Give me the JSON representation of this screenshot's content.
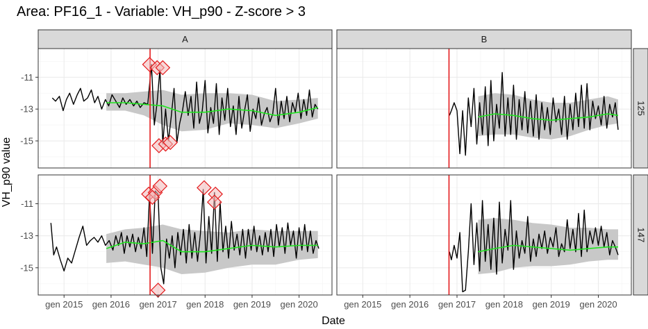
{
  "title": "Area: PF16_1 - Variable: VH_p90 - Z-score > 3",
  "colors": {
    "series": "#000000",
    "trend": "#1ee61e",
    "band": "#c8c8c8",
    "event_line": "#e41a1c",
    "anomaly": "#e41a1c",
    "anomaly_fill": "#f2b8b8",
    "strip_bg": "#d9d9d9",
    "grid": "#ebebeb",
    "panel_border": "#333333"
  },
  "chart_data": {
    "type": "line",
    "facet_columns": [
      "A",
      "B"
    ],
    "facet_rows": [
      "125",
      "147"
    ],
    "xlabel": "Date",
    "ylabel": "VH_p90 value",
    "x_ticks": [
      "gen 2015",
      "gen 2016",
      "gen 2017",
      "gen 2018",
      "gen 2019",
      "gen 2020"
    ],
    "x_tick_values": [
      2015.0,
      2016.0,
      2017.0,
      2018.0,
      2019.0,
      2020.0
    ],
    "xlim": [
      2014.45,
      2020.7
    ],
    "event_date": 2016.83,
    "y_ticks": [
      -11,
      -13,
      -15
    ],
    "ylim": [
      -16.7,
      -9.2
    ],
    "panels": [
      {
        "col": "A",
        "row": "125",
        "x": [
          2014.75,
          2014.82,
          2014.9,
          2014.98,
          2015.05,
          2015.12,
          2015.2,
          2015.28,
          2015.35,
          2015.42,
          2015.5,
          2015.58,
          2015.65,
          2015.72,
          2015.8,
          2015.88,
          2015.95,
          2016.02,
          2016.1,
          2016.18,
          2016.25,
          2016.32,
          2016.4,
          2016.48,
          2016.55,
          2016.62,
          2016.7,
          2016.78,
          2016.86,
          2016.92,
          2016.98,
          2017.04,
          2017.1,
          2017.16,
          2017.22,
          2017.28,
          2017.34,
          2017.4,
          2017.46,
          2017.52,
          2017.58,
          2017.64,
          2017.7,
          2017.76,
          2017.82,
          2017.88,
          2017.94,
          2018.0,
          2018.06,
          2018.12,
          2018.18,
          2018.24,
          2018.3,
          2018.36,
          2018.42,
          2018.48,
          2018.54,
          2018.6,
          2018.66,
          2018.72,
          2018.78,
          2018.84,
          2018.9,
          2018.96,
          2019.02,
          2019.08,
          2019.14,
          2019.2,
          2019.26,
          2019.32,
          2019.38,
          2019.44,
          2019.5,
          2019.56,
          2019.62,
          2019.68,
          2019.74,
          2019.8,
          2019.86,
          2019.92,
          2019.98,
          2020.04,
          2020.1,
          2020.16,
          2020.22,
          2020.28,
          2020.34,
          2020.4
        ],
        "y": [
          -12.3,
          -12.5,
          -12.2,
          -13.1,
          -12.4,
          -12.0,
          -12.7,
          -12.1,
          -11.7,
          -12.5,
          -12.3,
          -11.8,
          -12.6,
          -12.2,
          -13.0,
          -12.4,
          -12.8,
          -12.1,
          -12.5,
          -12.9,
          -12.3,
          -12.7,
          -12.4,
          -12.8,
          -12.5,
          -12.9,
          -12.6,
          -12.7,
          -10.2,
          -14.0,
          -12.6,
          -10.5,
          -15.2,
          -13.0,
          -15.0,
          -13.5,
          -11.7,
          -15.1,
          -13.9,
          -13.1,
          -11.9,
          -13.4,
          -12.2,
          -14.2,
          -11.3,
          -13.9,
          -13.1,
          -11.2,
          -14.5,
          -12.9,
          -13.9,
          -11.4,
          -14.6,
          -12.3,
          -13.7,
          -11.7,
          -14.1,
          -12.8,
          -14.6,
          -12.2,
          -14.2,
          -13.1,
          -12.1,
          -14.4,
          -13.0,
          -13.6,
          -12.3,
          -14.0,
          -13.3,
          -12.9,
          -13.8,
          -13.3,
          -11.7,
          -14.0,
          -12.5,
          -13.6,
          -12.2,
          -13.8,
          -12.6,
          -13.2,
          -12.0,
          -13.6,
          -12.4,
          -13.4,
          -11.8,
          -13.5,
          -12.7,
          -13.0
        ],
        "trend_x": [
          2015.9,
          2016.3,
          2016.7,
          2017.1,
          2017.5,
          2018.0,
          2018.5,
          2019.0,
          2019.5,
          2020.0,
          2020.4
        ],
        "trend_y": [
          -12.6,
          -12.6,
          -12.7,
          -12.8,
          -13.2,
          -13.2,
          -13.0,
          -13.1,
          -13.4,
          -13.2,
          -12.9
        ],
        "band_x": [
          2015.9,
          2016.3,
          2016.7,
          2017.1,
          2017.5,
          2018.0,
          2018.5,
          2019.0,
          2019.5,
          2020.0,
          2020.4
        ],
        "band_low": [
          -13.1,
          -13.1,
          -13.4,
          -14.0,
          -14.4,
          -14.3,
          -13.9,
          -14.0,
          -14.2,
          -13.9,
          -13.6
        ],
        "band_high": [
          -12.0,
          -12.0,
          -11.9,
          -11.8,
          -12.1,
          -12.0,
          -12.0,
          -12.1,
          -12.5,
          -12.4,
          -12.3
        ],
        "anomalies": [
          {
            "x": 2016.82,
            "y": -10.2
          },
          {
            "x": 2016.98,
            "y": -10.4
          },
          {
            "x": 2017.1,
            "y": -10.4
          },
          {
            "x": 2017.02,
            "y": -15.3
          },
          {
            "x": 2017.16,
            "y": -15.2
          },
          {
            "x": 2017.26,
            "y": -15.1
          }
        ]
      },
      {
        "col": "B",
        "row": "125",
        "x": [
          2016.84,
          2016.88,
          2016.94,
          2017.0,
          2017.06,
          2017.12,
          2017.18,
          2017.24,
          2017.3,
          2017.36,
          2017.42,
          2017.48,
          2017.54,
          2017.6,
          2017.66,
          2017.72,
          2017.78,
          2017.84,
          2017.9,
          2017.96,
          2018.02,
          2018.08,
          2018.14,
          2018.2,
          2018.26,
          2018.32,
          2018.38,
          2018.44,
          2018.5,
          2018.56,
          2018.62,
          2018.68,
          2018.74,
          2018.8,
          2018.86,
          2018.92,
          2018.98,
          2019.04,
          2019.1,
          2019.16,
          2019.22,
          2019.28,
          2019.34,
          2019.4,
          2019.46,
          2019.52,
          2019.58,
          2019.64,
          2019.7,
          2019.76,
          2019.82,
          2019.88,
          2019.94,
          2020.0,
          2020.06,
          2020.12,
          2020.18,
          2020.24,
          2020.3,
          2020.36,
          2020.42
        ],
        "y": [
          -13.4,
          -13.1,
          -12.6,
          -13.1,
          -15.8,
          -13.1,
          -15.9,
          -12.3,
          -14.1,
          -11.7,
          -15.2,
          -12.6,
          -14.6,
          -11.6,
          -15.3,
          -11.2,
          -15.0,
          -12.7,
          -14.2,
          -10.7,
          -14.7,
          -12.3,
          -14.6,
          -11.5,
          -14.9,
          -12.4,
          -14.3,
          -11.9,
          -14.5,
          -12.5,
          -14.7,
          -12.1,
          -14.9,
          -12.6,
          -14.3,
          -12.9,
          -14.6,
          -12.3,
          -13.8,
          -13.0,
          -14.6,
          -12.2,
          -14.9,
          -12.7,
          -14.3,
          -12.0,
          -14.1,
          -11.5,
          -14.2,
          -11.4,
          -14.3,
          -12.5,
          -13.6,
          -12.8,
          -14.0,
          -12.2,
          -14.2,
          -12.7,
          -13.5,
          -12.6,
          -14.3
        ],
        "trend_x": [
          2017.45,
          2017.8,
          2018.2,
          2018.6,
          2019.0,
          2019.4,
          2019.8,
          2020.2,
          2020.42
        ],
        "trend_y": [
          -13.5,
          -13.3,
          -13.4,
          -13.6,
          -13.7,
          -13.6,
          -13.5,
          -13.3,
          -13.4
        ],
        "band_x": [
          2017.45,
          2017.8,
          2018.2,
          2018.6,
          2019.0,
          2019.4,
          2019.8,
          2020.2,
          2020.42
        ],
        "band_low": [
          -14.7,
          -14.6,
          -14.6,
          -14.8,
          -14.9,
          -14.7,
          -14.3,
          -14.0,
          -13.9
        ],
        "band_high": [
          -12.2,
          -12.0,
          -12.1,
          -12.4,
          -12.6,
          -12.6,
          -12.4,
          -12.2,
          -12.4
        ],
        "anomalies": []
      },
      {
        "col": "A",
        "row": "147",
        "x": [
          2014.72,
          2014.78,
          2014.84,
          2014.92,
          2015.0,
          2015.08,
          2015.16,
          2015.24,
          2015.32,
          2015.4,
          2015.48,
          2015.56,
          2015.64,
          2015.72,
          2015.8,
          2015.88,
          2015.96,
          2016.04,
          2016.1,
          2016.16,
          2016.22,
          2016.28,
          2016.34,
          2016.4,
          2016.46,
          2016.52,
          2016.58,
          2016.64,
          2016.7,
          2016.76,
          2016.82,
          2016.88,
          2016.94,
          2017.0,
          2017.06,
          2017.12,
          2017.18,
          2017.24,
          2017.3,
          2017.36,
          2017.42,
          2017.48,
          2017.54,
          2017.6,
          2017.66,
          2017.72,
          2017.78,
          2017.84,
          2017.9,
          2017.96,
          2018.02,
          2018.08,
          2018.14,
          2018.2,
          2018.26,
          2018.32,
          2018.38,
          2018.44,
          2018.5,
          2018.56,
          2018.62,
          2018.68,
          2018.74,
          2018.8,
          2018.86,
          2018.92,
          2018.98,
          2019.04,
          2019.1,
          2019.16,
          2019.22,
          2019.28,
          2019.34,
          2019.4,
          2019.46,
          2019.52,
          2019.58,
          2019.64,
          2019.7,
          2019.76,
          2019.82,
          2019.88,
          2019.94,
          2020.0,
          2020.06,
          2020.12,
          2020.18,
          2020.24,
          2020.3,
          2020.36,
          2020.42
        ],
        "y": [
          -12.2,
          -14.2,
          -13.7,
          -14.5,
          -15.2,
          -14.4,
          -14.7,
          -13.9,
          -13.1,
          -12.4,
          -13.6,
          -13.3,
          -13.1,
          -13.4,
          -13.0,
          -13.6,
          -13.3,
          -13.9,
          -13.0,
          -13.6,
          -12.8,
          -14.1,
          -13.0,
          -13.7,
          -12.9,
          -14.0,
          -13.1,
          -13.8,
          -12.5,
          -14.3,
          -10.4,
          -14.1,
          -10.2,
          -10.4,
          -15.0,
          -16.0,
          -13.2,
          -14.4,
          -13.0,
          -15.0,
          -12.8,
          -14.2,
          -12.6,
          -14.7,
          -12.3,
          -14.4,
          -12.8,
          -14.6,
          -12.9,
          -10.1,
          -14.7,
          -11.8,
          -14.1,
          -10.3,
          -14.6,
          -10.9,
          -14.0,
          -12.4,
          -14.4,
          -12.1,
          -13.9,
          -12.9,
          -14.2,
          -12.6,
          -14.4,
          -12.6,
          -13.9,
          -12.4,
          -14.0,
          -13.0,
          -14.2,
          -12.8,
          -14.0,
          -12.6,
          -14.3,
          -12.3,
          -13.7,
          -12.5,
          -14.1,
          -12.2,
          -13.6,
          -12.7,
          -14.4,
          -12.5,
          -13.9,
          -12.3,
          -14.0,
          -12.7,
          -14.1,
          -13.3,
          -13.8
        ],
        "trend_x": [
          2015.9,
          2016.3,
          2016.7,
          2017.1,
          2017.5,
          2018.0,
          2018.5,
          2019.0,
          2019.5,
          2020.0,
          2020.4
        ],
        "trend_y": [
          -13.8,
          -13.4,
          -13.5,
          -13.3,
          -14.0,
          -14.0,
          -13.8,
          -13.6,
          -13.7,
          -13.6,
          -13.6
        ],
        "band_x": [
          2015.9,
          2016.3,
          2016.7,
          2017.1,
          2017.5,
          2018.0,
          2018.5,
          2019.0,
          2019.5,
          2020.0,
          2020.4
        ],
        "band_low": [
          -14.7,
          -14.6,
          -14.8,
          -15.0,
          -15.4,
          -15.3,
          -15.0,
          -14.8,
          -14.8,
          -14.5,
          -14.4
        ],
        "band_high": [
          -12.9,
          -12.6,
          -12.5,
          -12.3,
          -12.6,
          -12.7,
          -12.8,
          -12.6,
          -12.7,
          -12.7,
          -12.7
        ],
        "anomalies": [
          {
            "x": 2016.8,
            "y": -10.4
          },
          {
            "x": 2016.94,
            "y": -10.3
          },
          {
            "x": 2016.88,
            "y": -10.6
          },
          {
            "x": 2017.04,
            "y": -9.9
          },
          {
            "x": 2017.0,
            "y": -16.4
          },
          {
            "x": 2017.98,
            "y": -10.0
          },
          {
            "x": 2018.22,
            "y": -10.4
          },
          {
            "x": 2018.2,
            "y": -10.9
          }
        ]
      },
      {
        "col": "B",
        "row": "147",
        "x": [
          2016.84,
          2016.88,
          2016.94,
          2017.0,
          2017.06,
          2017.12,
          2017.18,
          2017.24,
          2017.3,
          2017.36,
          2017.42,
          2017.48,
          2017.54,
          2017.6,
          2017.66,
          2017.72,
          2017.78,
          2017.84,
          2017.9,
          2017.96,
          2018.02,
          2018.08,
          2018.14,
          2018.2,
          2018.26,
          2018.32,
          2018.38,
          2018.44,
          2018.5,
          2018.56,
          2018.62,
          2018.68,
          2018.74,
          2018.8,
          2018.86,
          2018.92,
          2018.98,
          2019.04,
          2019.1,
          2019.16,
          2019.22,
          2019.28,
          2019.34,
          2019.4,
          2019.46,
          2019.52,
          2019.58,
          2019.64,
          2019.7,
          2019.76,
          2019.82,
          2019.88,
          2019.94,
          2020.0,
          2020.06,
          2020.12,
          2020.18,
          2020.24,
          2020.3,
          2020.36,
          2020.42
        ],
        "y": [
          -14.0,
          -14.5,
          -13.6,
          -14.4,
          -12.8,
          -16.5,
          -16.4,
          -14.0,
          -11.0,
          -14.8,
          -12.2,
          -15.2,
          -10.8,
          -14.6,
          -12.3,
          -15.1,
          -11.9,
          -15.4,
          -10.9,
          -14.7,
          -12.6,
          -13.9,
          -10.8,
          -15.1,
          -12.7,
          -14.4,
          -13.3,
          -14.1,
          -11.8,
          -14.6,
          -13.2,
          -14.3,
          -12.9,
          -13.8,
          -12.7,
          -14.1,
          -13.1,
          -13.7,
          -12.5,
          -14.3,
          -13.5,
          -14.0,
          -12.0,
          -13.8,
          -12.6,
          -14.0,
          -11.6,
          -14.3,
          -11.4,
          -14.0,
          -12.7,
          -13.5,
          -12.5,
          -13.6,
          -12.4,
          -13.7,
          -12.8,
          -14.2,
          -13.3,
          -13.7,
          -14.2
        ],
        "trend_x": [
          2017.45,
          2017.8,
          2018.2,
          2018.6,
          2019.0,
          2019.4,
          2019.8,
          2020.2,
          2020.42
        ],
        "trend_y": [
          -14.0,
          -13.8,
          -13.6,
          -13.7,
          -13.8,
          -13.9,
          -13.8,
          -13.7,
          -13.7
        ],
        "band_x": [
          2017.45,
          2017.8,
          2018.2,
          2018.6,
          2019.0,
          2019.4,
          2019.8,
          2020.2,
          2020.42
        ],
        "band_low": [
          -15.4,
          -15.3,
          -15.0,
          -14.9,
          -14.9,
          -14.8,
          -14.6,
          -14.5,
          -14.5
        ],
        "band_high": [
          -12.0,
          -11.9,
          -12.0,
          -12.2,
          -12.3,
          -12.5,
          -12.5,
          -12.6,
          -12.6
        ],
        "anomalies": []
      }
    ]
  }
}
